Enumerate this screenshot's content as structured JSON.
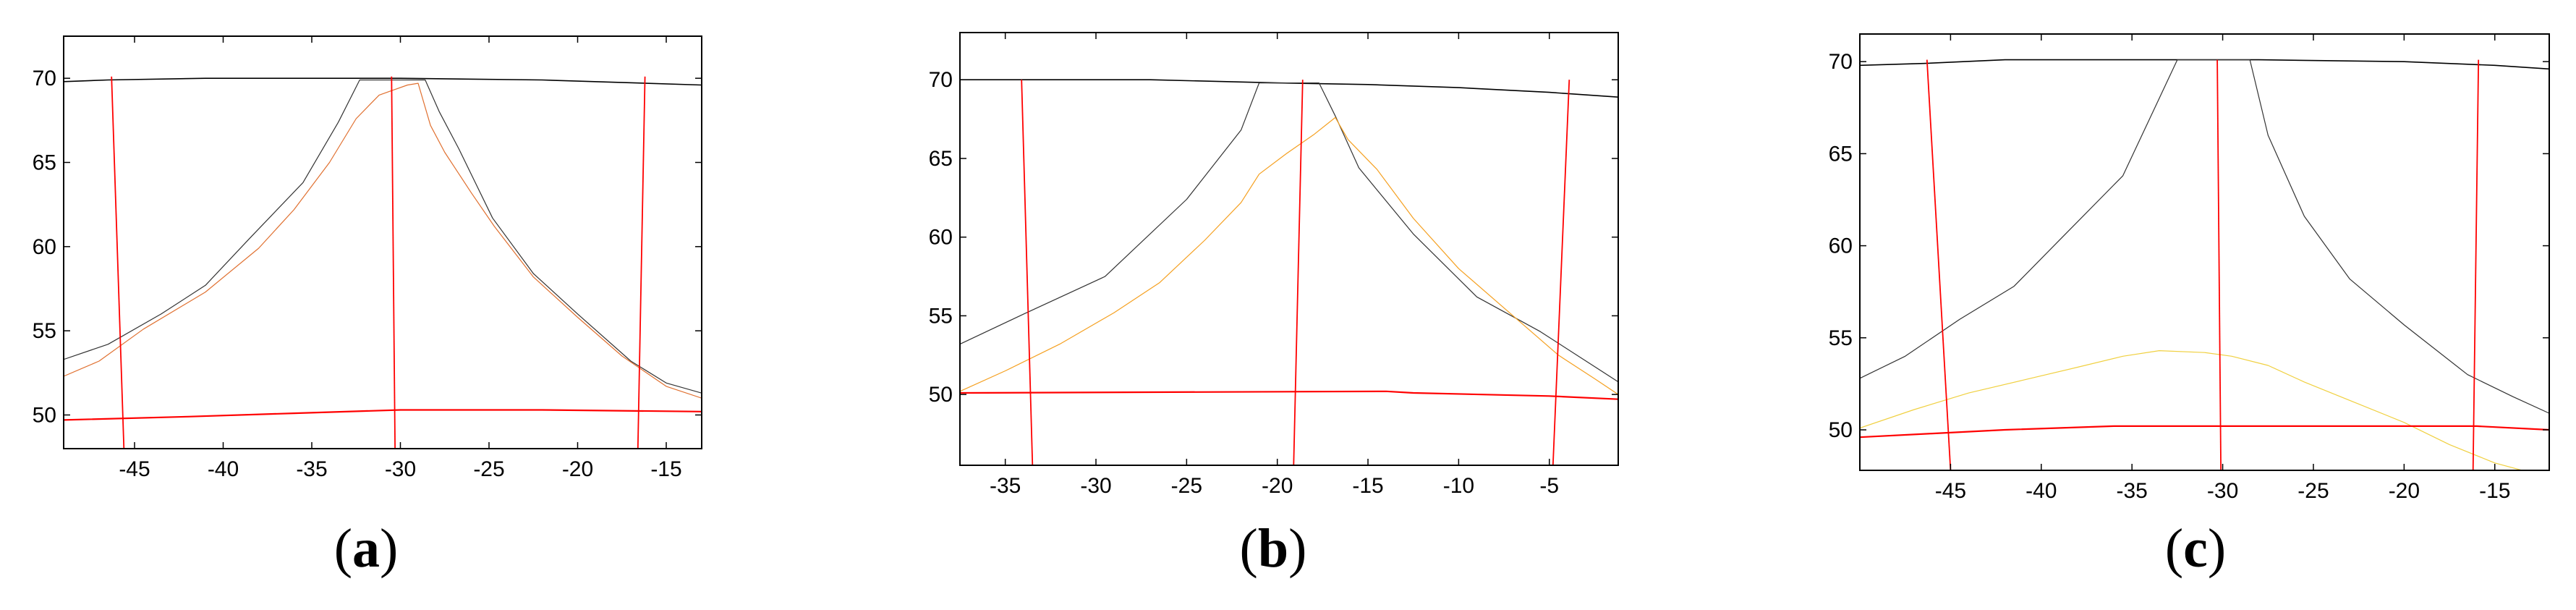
{
  "figure": {
    "panels": [
      {
        "caption_letter": "a",
        "chart_data": {
          "type": "line",
          "title": "",
          "xlabel": "",
          "ylabel": "",
          "xlim": [
            -49,
            -13
          ],
          "ylim": [
            48,
            72.5
          ],
          "xticks": [
            -45,
            -40,
            -35,
            -30,
            -25,
            -20,
            -15
          ],
          "yticks": [
            50,
            55,
            60,
            65,
            70
          ],
          "grid": false,
          "series": [
            {
              "color": "#000000",
              "width": 1.6,
              "points": [
                [
                  -49,
                  69.8
                ],
                [
                  -46.5,
                  69.9
                ],
                [
                  -41,
                  70.0
                ],
                [
                  -30,
                  70.0
                ],
                [
                  -22,
                  69.9
                ],
                [
                  -13,
                  69.6
                ]
              ]
            },
            {
              "color": "#333333",
              "width": 1.2,
              "points": [
                [
                  -49,
                  53.3
                ],
                [
                  -46.5,
                  54.2
                ],
                [
                  -43.5,
                  56
                ],
                [
                  -41,
                  57.7
                ],
                [
                  -38.5,
                  60.5
                ],
                [
                  -35.5,
                  63.8
                ],
                [
                  -33.5,
                  67.4
                ],
                [
                  -32.3,
                  69.9
                ],
                [
                  -28.6,
                  69.9
                ],
                [
                  -27.8,
                  68
                ],
                [
                  -26.7,
                  65.8
                ],
                [
                  -24.8,
                  61.7
                ],
                [
                  -22.5,
                  58.4
                ],
                [
                  -20,
                  56
                ],
                [
                  -17,
                  53.2
                ],
                [
                  -15,
                  51.9
                ],
                [
                  -13,
                  51.3
                ]
              ]
            },
            {
              "color": "#e07030",
              "width": 1.2,
              "points": [
                [
                  -49,
                  52.3
                ],
                [
                  -47,
                  53.2
                ],
                [
                  -44.5,
                  55.1
                ],
                [
                  -41,
                  57.3
                ],
                [
                  -38,
                  59.9
                ],
                [
                  -36,
                  62.2
                ],
                [
                  -34,
                  65
                ],
                [
                  -32.5,
                  67.6
                ],
                [
                  -31.2,
                  69.0
                ],
                [
                  -29.6,
                  69.6
                ],
                [
                  -29,
                  69.7
                ],
                [
                  -28.3,
                  67.2
                ],
                [
                  -27.5,
                  65.6
                ],
                [
                  -26,
                  63.2
                ],
                [
                  -24.7,
                  61.2
                ],
                [
                  -22.5,
                  58.2
                ],
                [
                  -20,
                  55.8
                ],
                [
                  -17.5,
                  53.5
                ],
                [
                  -15,
                  51.7
                ],
                [
                  -13,
                  51.0
                ]
              ]
            },
            {
              "color": "#ff0000",
              "width": 2.2,
              "points": [
                [
                  -49,
                  49.7
                ],
                [
                  -42,
                  49.9
                ],
                [
                  -36,
                  50.1
                ],
                [
                  -30,
                  50.3
                ],
                [
                  -22,
                  50.3
                ],
                [
                  -13,
                  50.2
                ]
              ]
            },
            {
              "color": "#ff0000",
              "width": 1.8,
              "points": [
                [
                  -46.3,
                  70.1
                ],
                [
                  -45.6,
                  48
                ]
              ]
            },
            {
              "color": "#ff0000",
              "width": 1.8,
              "points": [
                [
                  -30.5,
                  70.1
                ],
                [
                  -30.3,
                  48
                ]
              ]
            },
            {
              "color": "#ff0000",
              "width": 1.8,
              "points": [
                [
                  -16.2,
                  70.1
                ],
                [
                  -16.6,
                  48
                ]
              ]
            }
          ]
        }
      },
      {
        "caption_letter": "b",
        "chart_data": {
          "type": "line",
          "title": "",
          "xlabel": "",
          "ylabel": "",
          "xlim": [
            -37.5,
            -1.2
          ],
          "ylim": [
            45.5,
            73
          ],
          "xticks": [
            -35,
            -30,
            -25,
            -20,
            -15,
            -10,
            -5
          ],
          "yticks": [
            50,
            55,
            60,
            65,
            70
          ],
          "grid": false,
          "series": [
            {
              "color": "#000000",
              "width": 1.6,
              "points": [
                [
                  -37.5,
                  70.0
                ],
                [
                  -27,
                  70.0
                ],
                [
                  -20,
                  69.8
                ],
                [
                  -15,
                  69.7
                ],
                [
                  -10,
                  69.5
                ],
                [
                  -5,
                  69.2
                ],
                [
                  -1.2,
                  68.9
                ]
              ]
            },
            {
              "color": "#333333",
              "width": 1.2,
              "points": [
                [
                  -37.5,
                  53.2
                ],
                [
                  -34,
                  55.1
                ],
                [
                  -29.5,
                  57.5
                ],
                [
                  -25,
                  62.4
                ],
                [
                  -22,
                  66.8
                ],
                [
                  -21,
                  69.8
                ],
                [
                  -17.7,
                  69.8
                ],
                [
                  -16.8,
                  67.7
                ],
                [
                  -15.5,
                  64.4
                ],
                [
                  -12.5,
                  60.2
                ],
                [
                  -9,
                  56.2
                ],
                [
                  -5.5,
                  54.0
                ],
                [
                  -1.2,
                  50.8
                ]
              ]
            },
            {
              "color": "#f5a020",
              "width": 1.2,
              "points": [
                [
                  -37.5,
                  50.2
                ],
                [
                  -35,
                  51.5
                ],
                [
                  -32,
                  53.2
                ],
                [
                  -29,
                  55.2
                ],
                [
                  -26.5,
                  57.1
                ],
                [
                  -24,
                  59.8
                ],
                [
                  -22,
                  62.2
                ],
                [
                  -21,
                  64.0
                ],
                [
                  -19.5,
                  65.3
                ],
                [
                  -18,
                  66.5
                ],
                [
                  -16.8,
                  67.6
                ],
                [
                  -16.1,
                  66.2
                ],
                [
                  -14.5,
                  64.3
                ],
                [
                  -12.5,
                  61.2
                ],
                [
                  -10,
                  58.0
                ],
                [
                  -7,
                  55.0
                ],
                [
                  -4.5,
                  52.5
                ],
                [
                  -2.5,
                  51.0
                ],
                [
                  -1.2,
                  50.0
                ]
              ]
            },
            {
              "color": "#ff0000",
              "width": 2.2,
              "points": [
                [
                  -37.5,
                  50.1
                ],
                [
                  -14,
                  50.2
                ],
                [
                  -12.5,
                  50.1
                ],
                [
                  -5,
                  49.9
                ],
                [
                  -1.2,
                  49.7
                ]
              ]
            },
            {
              "color": "#ff0000",
              "width": 1.8,
              "points": [
                [
                  -34.1,
                  70.0
                ],
                [
                  -33.5,
                  45.5
                ]
              ]
            },
            {
              "color": "#ff0000",
              "width": 1.8,
              "points": [
                [
                  -18.6,
                  70.0
                ],
                [
                  -19.1,
                  45.5
                ]
              ]
            },
            {
              "color": "#ff0000",
              "width": 1.8,
              "points": [
                [
                  -3.9,
                  70.0
                ],
                [
                  -4.8,
                  45.5
                ]
              ]
            }
          ]
        }
      },
      {
        "caption_letter": "c",
        "chart_data": {
          "type": "line",
          "title": "",
          "xlabel": "",
          "ylabel": "",
          "xlim": [
            -50,
            -12
          ],
          "ylim": [
            47.8,
            71.5
          ],
          "xticks": [
            -45,
            -40,
            -35,
            -30,
            -25,
            -20,
            -15
          ],
          "yticks": [
            50,
            55,
            60,
            65,
            70
          ],
          "grid": false,
          "series": [
            {
              "color": "#000000",
              "width": 1.6,
              "points": [
                [
                  -50,
                  69.8
                ],
                [
                  -46.5,
                  69.9
                ],
                [
                  -42,
                  70.1
                ],
                [
                  -28,
                  70.1
                ],
                [
                  -20,
                  70.0
                ],
                [
                  -15,
                  69.8
                ],
                [
                  -12,
                  69.6
                ]
              ]
            },
            {
              "color": "#333333",
              "width": 1.2,
              "points": [
                [
                  -50,
                  52.8
                ],
                [
                  -47.5,
                  54.0
                ],
                [
                  -44.5,
                  56
                ],
                [
                  -41.5,
                  57.8
                ],
                [
                  -38.5,
                  60.8
                ],
                [
                  -35.5,
                  63.8
                ],
                [
                  -33.5,
                  68
                ],
                [
                  -32.5,
                  70.1
                ],
                [
                  -28.5,
                  70.1
                ],
                [
                  -27.5,
                  66
                ],
                [
                  -25.5,
                  61.6
                ],
                [
                  -23,
                  58.2
                ],
                [
                  -20,
                  55.7
                ],
                [
                  -16.5,
                  53.0
                ],
                [
                  -14,
                  51.8
                ],
                [
                  -12,
                  50.9
                ]
              ]
            },
            {
              "color": "#f0d040",
              "width": 1.2,
              "points": [
                [
                  -50,
                  50.1
                ],
                [
                  -47,
                  51.1
                ],
                [
                  -44,
                  52
                ],
                [
                  -41,
                  52.7
                ],
                [
                  -38,
                  53.4
                ],
                [
                  -35.5,
                  54.0
                ],
                [
                  -33.5,
                  54.3
                ],
                [
                  -31,
                  54.2
                ],
                [
                  -29.5,
                  54.0
                ],
                [
                  -27.5,
                  53.5
                ],
                [
                  -25.5,
                  52.6
                ],
                [
                  -23,
                  51.6
                ],
                [
                  -20,
                  50.4
                ],
                [
                  -17.5,
                  49.2
                ],
                [
                  -15,
                  48.2
                ],
                [
                  -13.5,
                  47.8
                ]
              ]
            },
            {
              "color": "#ff0000",
              "width": 2.2,
              "points": [
                [
                  -50,
                  49.6
                ],
                [
                  -46,
                  49.8
                ],
                [
                  -42,
                  50.0
                ],
                [
                  -36,
                  50.2
                ],
                [
                  -30,
                  50.2
                ],
                [
                  -22,
                  50.2
                ],
                [
                  -16,
                  50.2
                ],
                [
                  -12,
                  50.0
                ]
              ]
            },
            {
              "color": "#ff0000",
              "width": 1.8,
              "points": [
                [
                  -46.3,
                  70.1
                ],
                [
                  -45,
                  47.8
                ]
              ]
            },
            {
              "color": "#ff0000",
              "width": 1.8,
              "points": [
                [
                  -30.3,
                  70.1
                ],
                [
                  -30.1,
                  47.8
                ]
              ]
            },
            {
              "color": "#ff0000",
              "width": 1.8,
              "points": [
                [
                  -15.9,
                  70.1
                ],
                [
                  -16.2,
                  47.8
                ]
              ]
            }
          ]
        }
      }
    ]
  }
}
